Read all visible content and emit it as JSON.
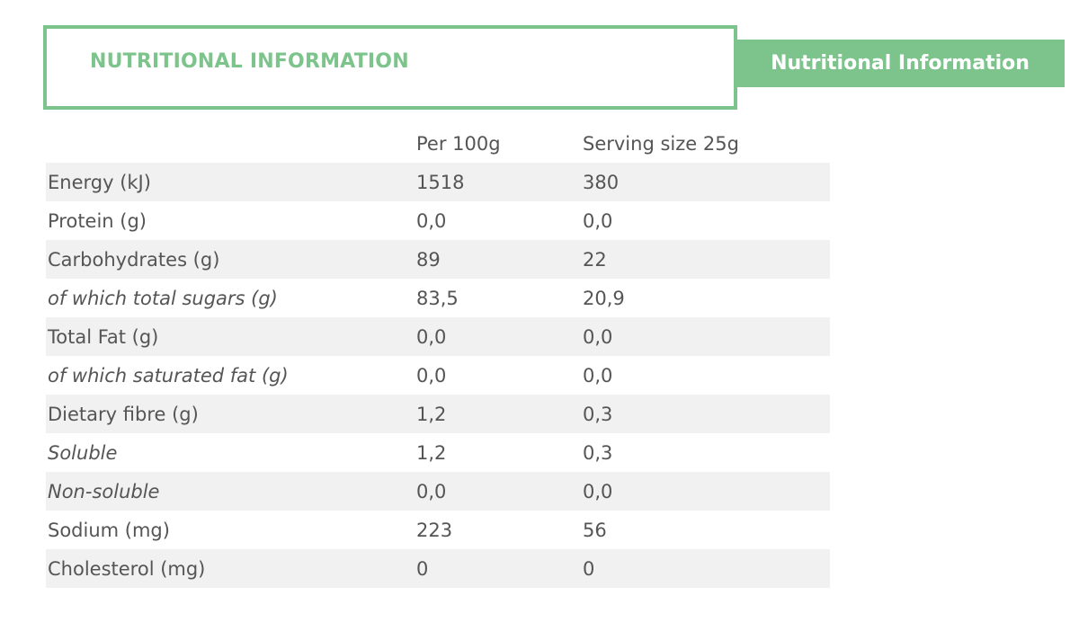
{
  "title": "NUTRITIONAL INFORMATION",
  "tab_label": "Nutritional Information",
  "colors": {
    "accent": "#7cc48b",
    "stripe": "#f1f1f1",
    "text": "#555555"
  },
  "table": {
    "headers": [
      "",
      "Per 100g",
      "Serving size 25g"
    ],
    "rows": [
      {
        "name": "Energy (kJ)",
        "per100g": "1518",
        "serving": "380",
        "italic": false
      },
      {
        "name": "Protein (g)",
        "per100g": "0,0",
        "serving": "0,0",
        "italic": false
      },
      {
        "name": "Carbohydrates (g)",
        "per100g": "89",
        "serving": "22",
        "italic": false
      },
      {
        "name": "of which total sugars (g)",
        "per100g": "83,5",
        "serving": "20,9",
        "italic": true
      },
      {
        "name": "Total Fat (g)",
        "per100g": "0,0",
        "serving": "0,0",
        "italic": false
      },
      {
        "name": "of which saturated fat (g)",
        "per100g": "0,0",
        "serving": "0,0",
        "italic": true
      },
      {
        "name": "Dietary fibre (g)",
        "per100g": "1,2",
        "serving": "0,3",
        "italic": false
      },
      {
        "name": "Soluble",
        "per100g": "1,2",
        "serving": "0,3",
        "italic": true
      },
      {
        "name": "Non-soluble",
        "per100g": "0,0",
        "serving": "0,0",
        "italic": true
      },
      {
        "name": "Sodium (mg)",
        "per100g": "223",
        "serving": "56",
        "italic": false
      },
      {
        "name": "Cholesterol (mg)",
        "per100g": "0",
        "serving": "0",
        "italic": false
      }
    ]
  }
}
